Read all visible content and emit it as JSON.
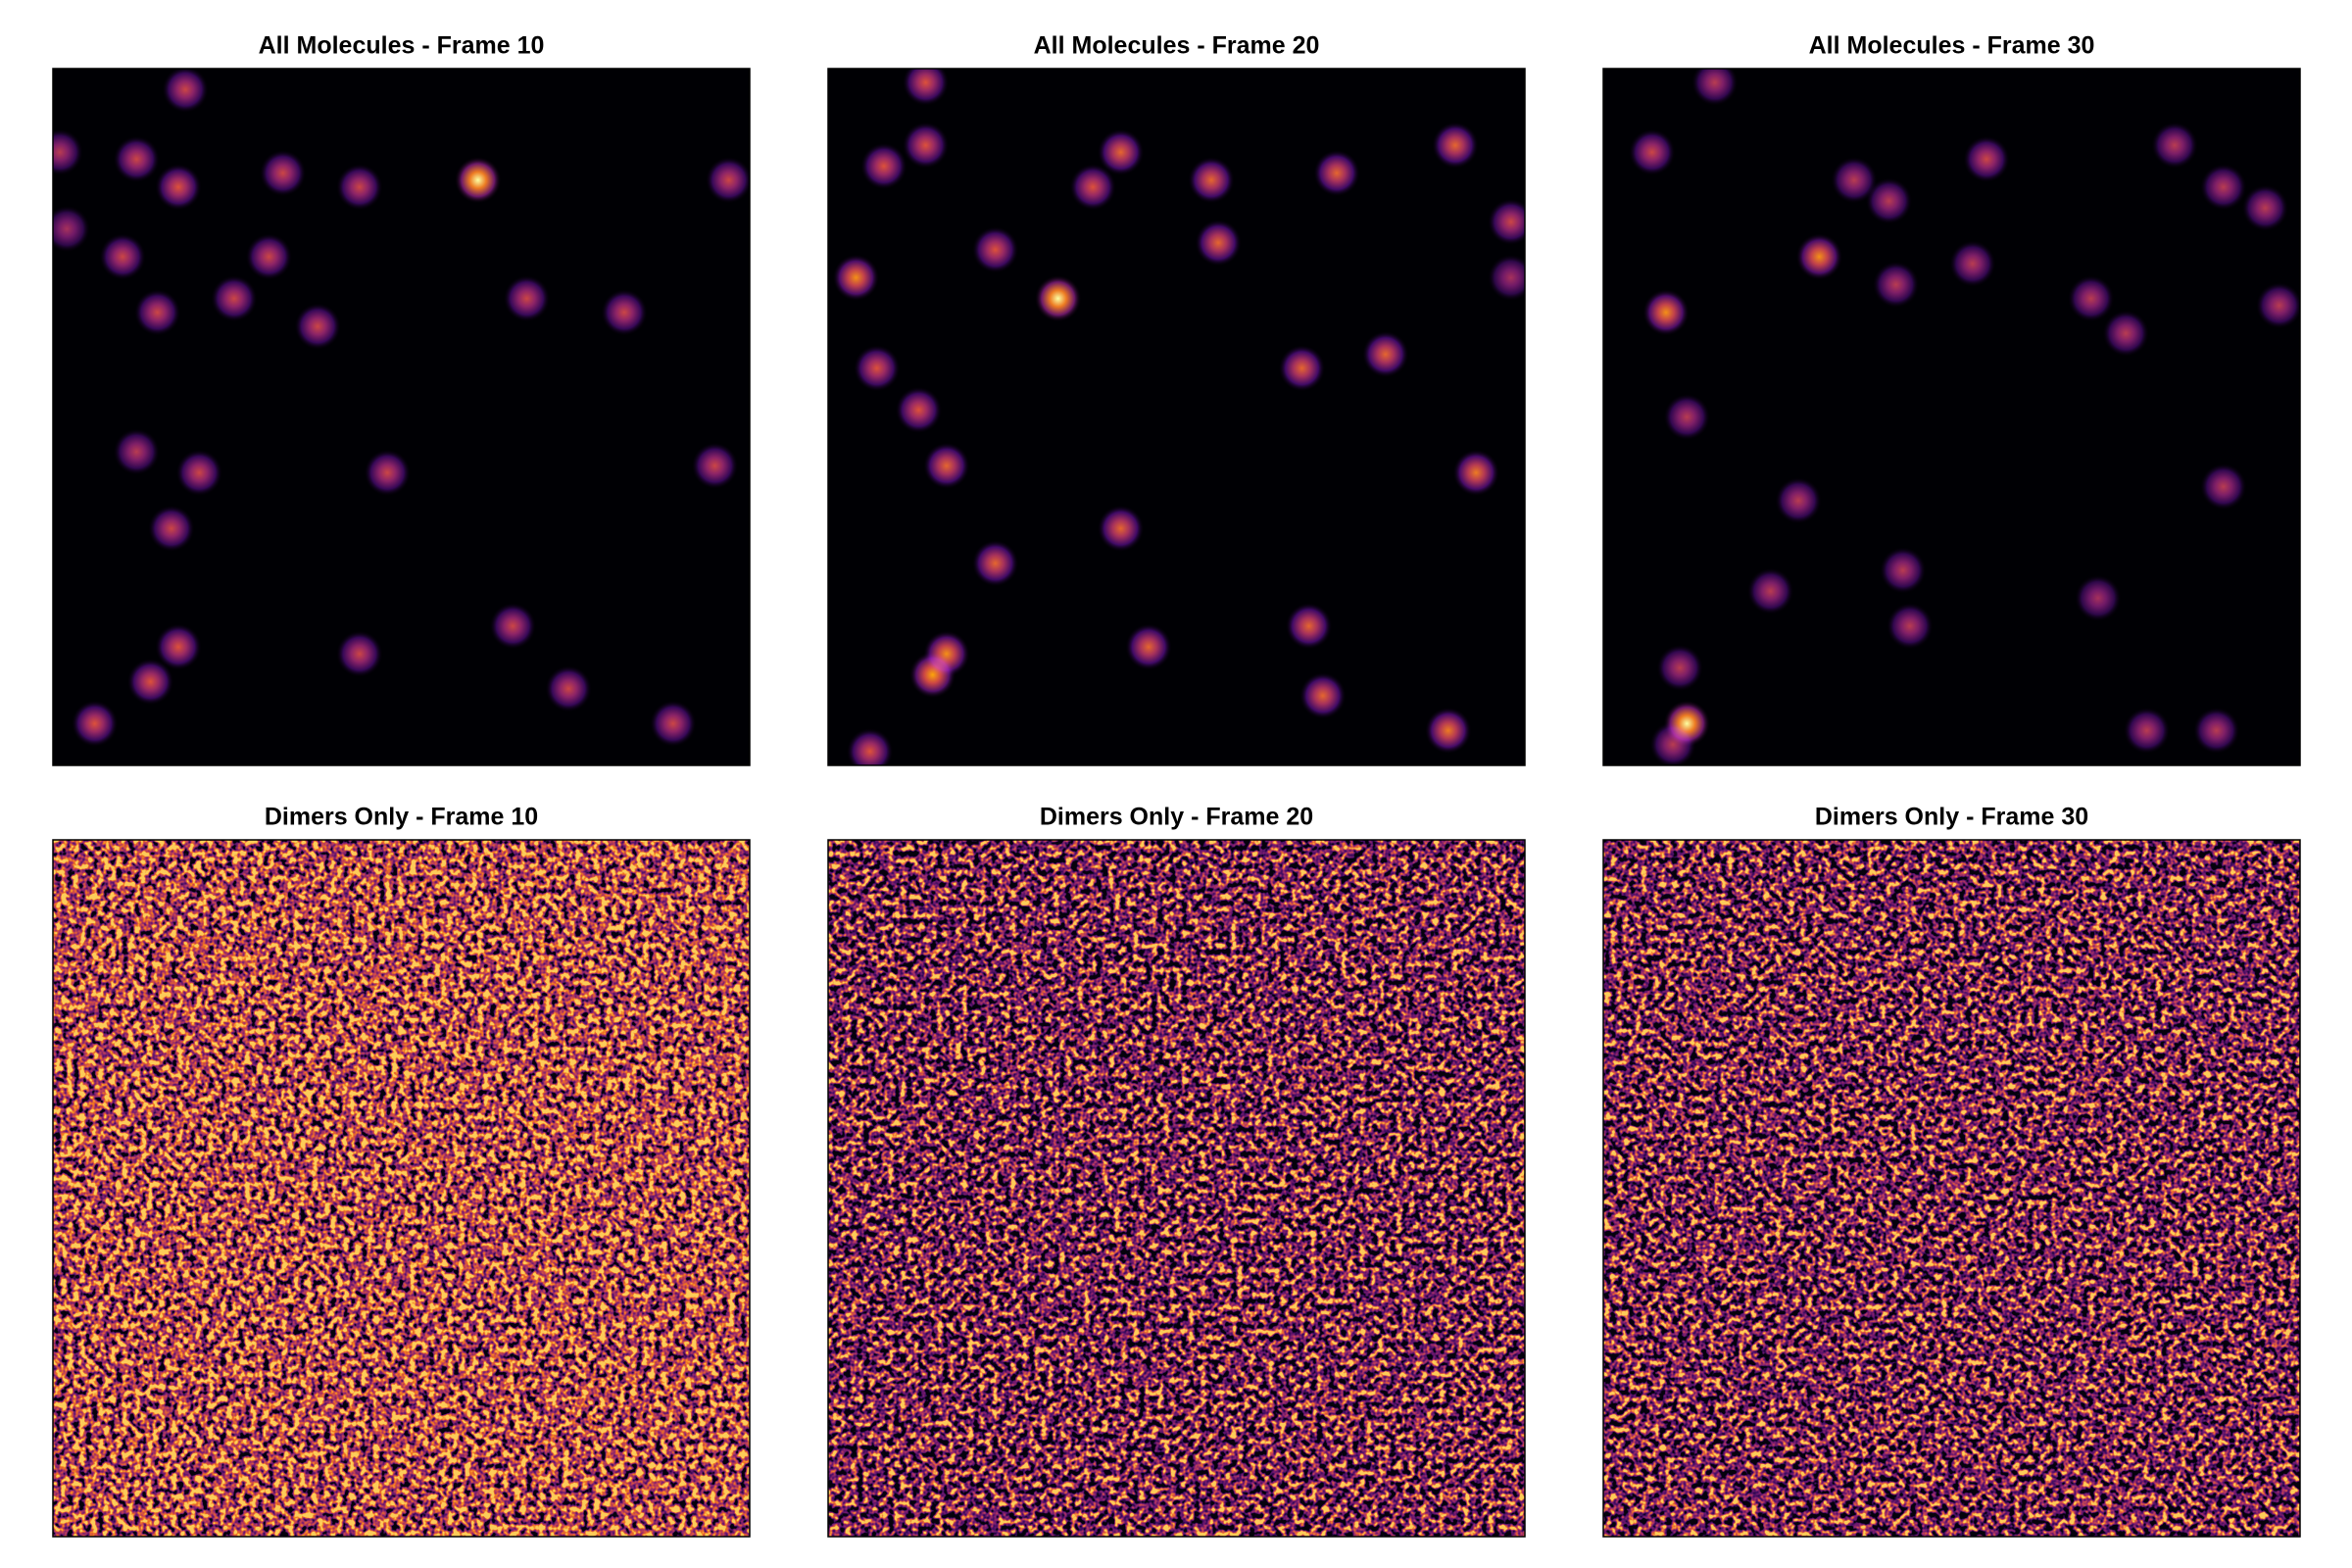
{
  "chart_data": [
    {
      "type": "spots",
      "title": "All Molecules - Frame 10",
      "colormap": "inferno",
      "xlim": [
        0,
        100
      ],
      "ylim": [
        100,
        0
      ],
      "x": [
        19,
        1,
        12,
        18,
        33,
        44,
        61,
        97,
        2,
        10,
        31,
        26,
        15,
        38,
        68,
        82,
        12,
        21,
        48,
        95,
        17,
        18,
        14,
        44,
        66,
        74,
        6,
        89
      ],
      "y": [
        3,
        12,
        13,
        17,
        15,
        17,
        16,
        16,
        23,
        27,
        27,
        33,
        35,
        37,
        33,
        35,
        55,
        58,
        58,
        57,
        66,
        83,
        88,
        84,
        80,
        89,
        94,
        94
      ],
      "values": [
        0.55,
        0.5,
        0.55,
        0.6,
        0.55,
        0.55,
        1.0,
        0.55,
        0.45,
        0.55,
        0.55,
        0.55,
        0.55,
        0.55,
        0.55,
        0.55,
        0.5,
        0.55,
        0.55,
        0.55,
        0.55,
        0.6,
        0.6,
        0.55,
        0.55,
        0.55,
        0.6,
        0.55
      ]
    },
    {
      "type": "spots",
      "title": "All Molecules - Frame 20",
      "colormap": "inferno",
      "xlim": [
        0,
        100
      ],
      "ylim": [
        100,
        0
      ],
      "x": [
        14,
        14,
        8,
        42,
        38,
        55,
        73,
        90,
        98,
        24,
        56,
        4,
        33,
        98,
        7,
        68,
        80,
        13,
        17,
        93,
        42,
        24,
        17,
        15,
        46,
        69,
        71,
        89,
        6
      ],
      "y": [
        2,
        11,
        14,
        12,
        17,
        16,
        15,
        11,
        22,
        26,
        25,
        30,
        33,
        30,
        43,
        43,
        41,
        49,
        57,
        58,
        66,
        71,
        84,
        87,
        83,
        80,
        90,
        95,
        98
      ],
      "values": [
        0.6,
        0.6,
        0.6,
        0.65,
        0.6,
        0.65,
        0.65,
        0.65,
        0.55,
        0.6,
        0.65,
        0.75,
        1.0,
        0.45,
        0.6,
        0.65,
        0.65,
        0.6,
        0.65,
        0.7,
        0.65,
        0.65,
        0.75,
        0.8,
        0.65,
        0.65,
        0.65,
        0.7,
        0.6
      ]
    },
    {
      "type": "spots",
      "title": "All Molecules - Frame 30",
      "colormap": "inferno",
      "xlim": [
        0,
        100
      ],
      "ylim": [
        100,
        0
      ],
      "x": [
        16,
        7,
        36,
        41,
        55,
        82,
        89,
        95,
        31,
        42,
        53,
        9,
        70,
        75,
        97,
        12,
        28,
        89,
        43,
        24,
        44,
        71,
        11,
        12,
        10,
        78,
        88
      ],
      "y": [
        2,
        12,
        16,
        19,
        13,
        11,
        17,
        20,
        27,
        31,
        28,
        35,
        33,
        38,
        34,
        50,
        62,
        60,
        72,
        75,
        80,
        76,
        86,
        94,
        97,
        95,
        95
      ],
      "values": [
        0.5,
        0.55,
        0.5,
        0.5,
        0.55,
        0.5,
        0.5,
        0.5,
        0.75,
        0.5,
        0.5,
        0.75,
        0.5,
        0.5,
        0.5,
        0.5,
        0.5,
        0.5,
        0.5,
        0.5,
        0.5,
        0.45,
        0.5,
        1.0,
        0.5,
        0.5,
        0.5
      ]
    },
    {
      "type": "noise",
      "title": "Dimers Only - Frame 10",
      "colormap": "inferno"
    },
    {
      "type": "noise",
      "title": "Dimers Only - Frame 20",
      "colormap": "inferno"
    },
    {
      "type": "noise",
      "title": "Dimers Only - Frame 30",
      "colormap": "inferno"
    }
  ]
}
